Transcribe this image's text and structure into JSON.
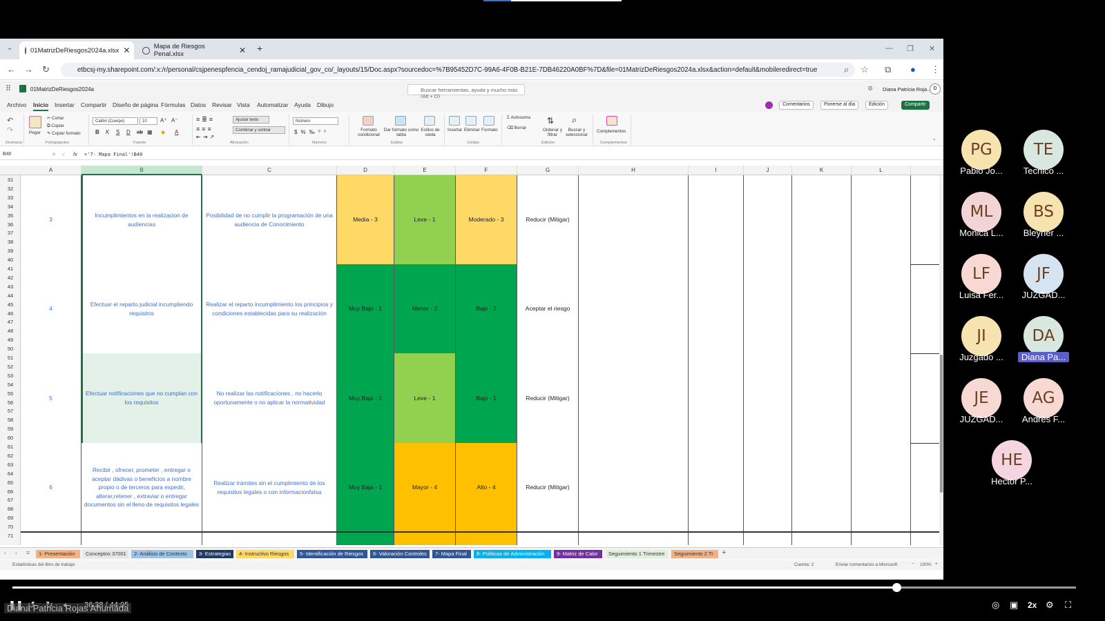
{
  "browser": {
    "tabs": [
      {
        "label": "01MatrizDeRiesgos2024a.xlsx",
        "active": true
      },
      {
        "label": "Mapa de Riesgos Penal.xlsx",
        "active": false
      }
    ],
    "new_tab": "+",
    "url": "etbcsj-my.sharepoint.com/:x:/r/personal/csjpenespfencia_cendoj_ramajudicial_gov_co/_layouts/15/Doc.aspx?sourcedoc=%7B95452D7C-99A6-4F0B-B21E-7DB46220A0BF%7D&file=01MatrizDeRiesgos2024a.xlsx&action=default&mobileredirect=true"
  },
  "office": {
    "file_name": "01MatrizDeRiesgos2024a",
    "search_placeholder": "Buscar herramientas, ayuda y mucho más (Alt + Q)",
    "user": "Diana Patricia Roja...",
    "user_initial": "D",
    "menu": [
      "Archivo",
      "Inicio",
      "Insertar",
      "Compartir",
      "Diseño de página",
      "Fórmulas",
      "Datos",
      "Revisar",
      "Vista",
      "Automatizar",
      "Ayuda",
      "Dibujo"
    ],
    "selected_menu": "Inicio",
    "header_buttons": {
      "comments": "Comentarios",
      "catch_up": "Ponerse al día",
      "editing": "Edición",
      "share": "Compartir"
    }
  },
  "ribbon": {
    "undo": "Deshacer",
    "paste": "Pegar",
    "cut": "Cortar",
    "copy": "Copiar",
    "copy_format": "Copiar formato",
    "clipboard": "Portapapeles",
    "font": "Calibri (Cuerpo)",
    "font_size": "10",
    "font_group": "Fuente",
    "wrap": "Ajustar texto",
    "merge": "Combinar y centrar",
    "alignment_group": "Alineación",
    "number_format": "Número",
    "number_group": "Número",
    "cond_format": "Formato condicional",
    "as_table": "Dar formato como tabla",
    "cell_styles": "Estilos de celda",
    "styles_group": "Estilos",
    "insert": "Insertar",
    "delete": "Eliminar",
    "format": "Formato",
    "cells_group": "Celdas",
    "autosum": "Autosuma",
    "clear": "Borrar",
    "sort": "Ordenar y filtrar",
    "find": "Buscar y seleccionar",
    "editing_group": "Edición",
    "addins": "Complementos",
    "addins_group": "Complementos"
  },
  "formula_bar": {
    "cell_ref": "B40",
    "formula": "='7- Mapa Final'!B40"
  },
  "grid": {
    "columns": [
      "A",
      "B",
      "C",
      "D",
      "E",
      "F",
      "G",
      "H",
      "I",
      "J",
      "K",
      "L"
    ],
    "selected_column": "B",
    "row_numbers": [
      "31",
      "32",
      "33",
      "34",
      "35",
      "36",
      "37",
      "38",
      "39",
      "40",
      "41",
      "42",
      "43",
      "44",
      "45",
      "46",
      "47",
      "48",
      "49",
      "50",
      "51",
      "52",
      "53",
      "54",
      "55",
      "56",
      "57",
      "58",
      "59",
      "60",
      "61",
      "62",
      "63",
      "64",
      "65",
      "66",
      "67",
      "68",
      "69",
      "70",
      "71"
    ],
    "blocks": [
      {
        "num": "3",
        "risk": "Incumplimientos en la realizacion de audiencias",
        "desc": "Posibilidad de no cumplir la programación de una audiencia de Conocimiento",
        "prob": "Media - 3",
        "impact": "Leve - 1",
        "level": "Moderado - 3",
        "treatment": "Reducir (Mitigar)",
        "prob_color": "#ffd966",
        "impact_color": "#92d050",
        "level_color": "#ffd966"
      },
      {
        "num": "4",
        "risk": "Efectuar el reparto judicial incumpliendo requisitos",
        "desc": "Realizar el reparto incumplimiento los principios y condiciones establecidas para su realización",
        "prob": "Muy Baja - 1",
        "impact": "Menor - 2",
        "level": "Bajo - 2",
        "treatment": "Aceptar el riesgo",
        "prob_color": "#00a550",
        "impact_color": "#00a550",
        "level_color": "#00a550"
      },
      {
        "num": "5",
        "risk": "Efectuar notificaciones que no cumplan con los requisitos",
        "desc": "No realizar las notificaciones , no hacerlo oportunamente o no aplicar la normatividad",
        "prob": "Muy Baja - 1",
        "impact": "Leve - 1",
        "level": "Bajo - 1",
        "treatment": "Reducir (Mitigar)",
        "prob_color": "#00a550",
        "impact_color": "#92d050",
        "level_color": "#00a550"
      },
      {
        "num": "6",
        "risk": "Recibir , ofrecer, prometer , entregar o aceptar dádivas o beneficios a nombre propio o de terceros para expedir, alterar,retener , extraviar o entregar documentos sin el lleno de requisitos legales",
        "desc": "Realizar trámites sin el cumplimiento de los requisitos legales o con informacionfalsa",
        "prob": "Muy Baja - 1",
        "impact": "Mayor - 4",
        "level": "Alto - 4",
        "treatment": "Reducir (Mitigar)",
        "prob_color": "#00a550",
        "impact_color": "#ffc000",
        "level_color": "#ffc000"
      }
    ]
  },
  "sheet_tabs": [
    {
      "label": "1- Presentación",
      "color": "#f4b183"
    },
    {
      "label": "Conceptos 37001",
      "color": "#e7e6e6"
    },
    {
      "label": "2- Análisis de Contexto",
      "color": "#9dc3e6"
    },
    {
      "label": "3- Estrategias",
      "color": "#203864"
    },
    {
      "label": "4- Instructivo Riesgos",
      "color": "#ffd966"
    },
    {
      "label": "5- Identificación de Riesgos",
      "color": "#2f5597"
    },
    {
      "label": "6- Valoración Controles",
      "color": "#2f5597"
    },
    {
      "label": "7- Mapa Final",
      "color": "#2f5597"
    },
    {
      "label": "8- Políticas de Administración",
      "color": "#00b0f0"
    },
    {
      "label": "9- Matriz de Calor",
      "color": "#7030a0"
    },
    {
      "label": "Seguimiento 1 Trimestre",
      "color": "#e2efda"
    },
    {
      "label": "Seguimiento 2 Tr",
      "color": "#f4b183"
    }
  ],
  "status_bar": {
    "left": "Estadísticas del libro de trabajo",
    "count": "Cuenta: 2",
    "feedback": "Enviar comentarios a Microsoft",
    "zoom": "100%"
  },
  "participants": [
    {
      "initials": "PG",
      "name": "Pablo Jo...",
      "color": "#f7e3b0"
    },
    {
      "initials": "TE",
      "name": "Tecnico ...",
      "color": "#d9e8df"
    },
    {
      "initials": "ML",
      "name": "Monica L...",
      "color": "#f2d4d4"
    },
    {
      "initials": "BS",
      "name": "Bleyner ...",
      "color": "#f7e3b0"
    },
    {
      "initials": "LF",
      "name": "Luisa Fer...",
      "color": "#f7d8d3"
    },
    {
      "initials": "JF",
      "name": "JUZGAD...",
      "color": "#d6e4f2"
    },
    {
      "initials": "JI",
      "name": "Juzgado ...",
      "color": "#f7e3b0"
    },
    {
      "initials": "DA",
      "name": "Diana Pa...",
      "color": "#d9e8df",
      "highlight": true
    },
    {
      "initials": "JE",
      "name": "JUZGAD...",
      "color": "#f7d8d3"
    },
    {
      "initials": "AG",
      "name": "Andrés F...",
      "color": "#f7d8d3"
    },
    {
      "initials": "HE",
      "name": "Hector P...",
      "color": "#f5d5e0"
    }
  ],
  "video": {
    "time": "36:38 / 44:05",
    "progress": 0.831,
    "speed": "2x",
    "caption": "Diana Patricia Rojas Ahumada"
  }
}
